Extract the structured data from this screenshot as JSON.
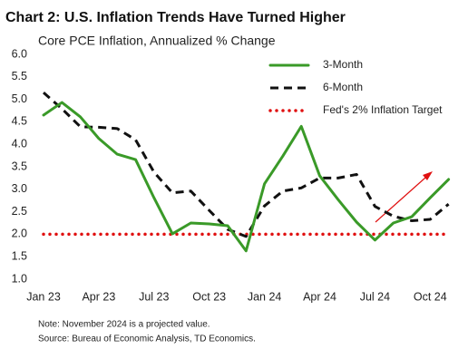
{
  "chart_data": {
    "type": "line",
    "title": "Chart 2: U.S. Inflation Trends Have Turned Higher",
    "subtitle": "Core PCE Inflation, Annualized % Change",
    "categories": [
      "Jan 23",
      null,
      null,
      "Apr 23",
      null,
      null,
      "Jul 23",
      null,
      null,
      "Oct 23",
      null,
      null,
      "Jan 24",
      null,
      null,
      "Apr 24",
      null,
      null,
      "Jul 24",
      null,
      null,
      "Oct 24",
      null
    ],
    "series": [
      {
        "name": "3-Month",
        "color": "#3a9a28",
        "dash": "solid",
        "values": [
          4.65,
          4.93,
          4.61,
          4.13,
          3.78,
          3.66,
          2.81,
          2.01,
          2.25,
          2.23,
          2.19,
          1.63,
          3.12,
          3.74,
          4.4,
          3.3,
          2.77,
          2.27,
          1.87,
          2.25,
          2.39,
          2.81,
          3.22
        ]
      },
      {
        "name": "6-Month",
        "color": "#111111",
        "dash": "dashed",
        "values": [
          5.15,
          4.79,
          4.39,
          4.38,
          4.35,
          4.1,
          3.38,
          2.92,
          2.96,
          2.53,
          2.11,
          1.95,
          2.63,
          2.96,
          3.03,
          3.25,
          3.25,
          3.33,
          2.62,
          2.4,
          2.3,
          2.33,
          2.67
        ]
      },
      {
        "name": "Fed's 2% Inflation Target",
        "color": "#e01010",
        "dash": "dotted",
        "values": [
          2,
          2,
          2,
          2,
          2,
          2,
          2,
          2,
          2,
          2,
          2,
          2,
          2,
          2,
          2,
          2,
          2,
          2,
          2,
          2,
          2,
          2,
          2
        ]
      }
    ],
    "ylim": [
      1,
      6
    ],
    "yticks": [
      {
        "value": 1,
        "label": "1.0"
      },
      1.5,
      {
        "value": 2,
        "label": "2.0"
      },
      2.5,
      {
        "value": 3,
        "label": "3.0"
      },
      3.5,
      {
        "value": 4,
        "label": "4.0"
      },
      4.5,
      {
        "value": 5,
        "label": "5.0"
      },
      5.5,
      {
        "value": 6,
        "label": "6.0"
      }
    ],
    "grid": false,
    "legend": "upper right",
    "notes": [
      "Note: November 2024 is a projected value.",
      "Source: Bureau of Economic Analysis, TD Economics."
    ]
  }
}
